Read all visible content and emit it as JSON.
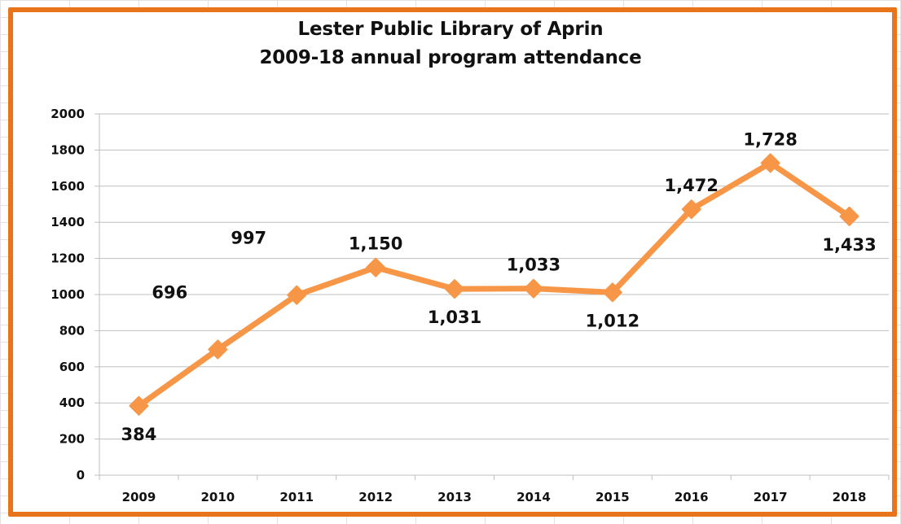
{
  "colors": {
    "frame": "#e8741c",
    "series": "#f79646",
    "gridline": "#bfbfbf",
    "text": "#111111"
  },
  "chart_data": {
    "type": "line",
    "title": "Lester Public Library of Aprin",
    "subtitle": "2009-18 annual program attendance",
    "xlabel": "",
    "ylabel": "",
    "ylim": [
      0,
      2000
    ],
    "ytick_step": 200,
    "grid": true,
    "legend": "none",
    "categories": [
      "2009",
      "2010",
      "2011",
      "2012",
      "2013",
      "2014",
      "2015",
      "2016",
      "2017",
      "2018"
    ],
    "series": [
      {
        "values": [
          384,
          696,
          997,
          1150,
          1031,
          1033,
          1012,
          1472,
          1728,
          1433
        ],
        "labels": [
          "384",
          "696",
          "997",
          "1,150",
          "1,031",
          "1,033",
          "1,012",
          "1,472",
          "1,728",
          "1,433"
        ],
        "label_positions": [
          "below",
          "above-left",
          "above-left",
          "above",
          "below",
          "above",
          "below",
          "above",
          "above",
          "below"
        ],
        "marker": "diamond"
      }
    ]
  }
}
